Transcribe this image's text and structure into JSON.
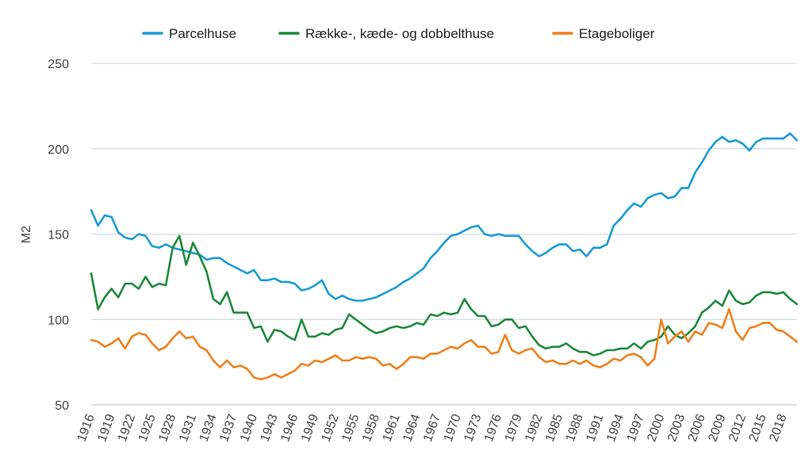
{
  "chart_data": {
    "type": "line",
    "ylabel": "M2",
    "ylim": [
      50,
      250
    ],
    "y_ticks": [
      "50",
      "100",
      "150",
      "200",
      "250"
    ],
    "x_tick_labels": [
      "1916",
      "1919",
      "1922",
      "1925",
      "1928",
      "1931",
      "1934",
      "1937",
      "1940",
      "1943",
      "1946",
      "1949",
      "1952",
      "1955",
      "1958",
      "1961",
      "1964",
      "1967",
      "1970",
      "1973",
      "1976",
      "1979",
      "1982",
      "1985",
      "1988",
      "1991",
      "1994",
      "1997",
      "2000",
      "2003",
      "2006",
      "2009",
      "2012",
      "2015",
      "2018"
    ],
    "x": [
      1916,
      1917,
      1918,
      1919,
      1920,
      1921,
      1922,
      1923,
      1924,
      1925,
      1926,
      1927,
      1928,
      1929,
      1930,
      1931,
      1932,
      1933,
      1934,
      1935,
      1936,
      1937,
      1938,
      1939,
      1940,
      1941,
      1942,
      1943,
      1944,
      1945,
      1946,
      1947,
      1948,
      1949,
      1950,
      1951,
      1952,
      1953,
      1954,
      1955,
      1956,
      1957,
      1958,
      1959,
      1960,
      1961,
      1962,
      1963,
      1964,
      1965,
      1966,
      1967,
      1968,
      1969,
      1970,
      1971,
      1972,
      1973,
      1974,
      1975,
      1976,
      1977,
      1978,
      1979,
      1980,
      1981,
      1982,
      1983,
      1984,
      1985,
      1986,
      1987,
      1988,
      1989,
      1990,
      1991,
      1992,
      1993,
      1994,
      1995,
      1996,
      1997,
      1998,
      1999,
      2000,
      2001,
      2002,
      2003,
      2004,
      2005,
      2006,
      2007,
      2008,
      2009,
      2010,
      2011,
      2012,
      2013,
      2014,
      2015,
      2016,
      2017,
      2018,
      2019,
      2020
    ],
    "grid": true,
    "legend_position": "top",
    "series": [
      {
        "name": "Parcelhuse",
        "color": "#1a9bd7",
        "values": [
          164,
          155,
          161,
          160,
          151,
          148,
          147,
          150,
          149,
          143,
          142,
          144,
          142,
          141,
          140,
          139,
          138,
          135,
          136,
          136,
          133,
          131,
          129,
          127,
          129,
          123,
          123,
          124,
          122,
          122,
          121,
          117,
          118,
          120,
          123,
          115,
          112,
          114,
          112,
          111,
          111,
          112,
          113,
          115,
          117,
          119,
          122,
          124,
          127,
          130,
          136,
          140,
          145,
          149,
          150,
          152,
          154,
          155,
          150,
          149,
          150,
          149,
          149,
          149,
          144,
          140,
          137,
          139,
          142,
          144,
          144,
          140,
          141,
          137,
          142,
          142,
          144,
          155,
          159,
          164,
          168,
          166,
          171,
          173,
          174,
          171,
          172,
          177,
          177,
          186,
          192,
          199,
          204,
          207,
          204,
          205,
          203,
          199,
          204,
          206,
          206,
          206,
          206,
          209,
          205
        ]
      },
      {
        "name": "Række-, kæde- og dobbelthuse",
        "color": "#1e8a3c",
        "values": [
          127,
          106,
          113,
          118,
          113,
          121,
          121,
          118,
          125,
          119,
          121,
          120,
          142,
          149,
          132,
          145,
          137,
          128,
          112,
          109,
          116,
          104,
          104,
          104,
          95,
          96,
          87,
          94,
          93,
          90,
          88,
          100,
          90,
          90,
          92,
          91,
          94,
          95,
          103,
          100,
          97,
          94,
          92,
          93,
          95,
          96,
          95,
          96,
          98,
          97,
          103,
          102,
          104,
          103,
          104,
          112,
          106,
          102,
          102,
          96,
          97,
          100,
          100,
          95,
          96,
          90,
          85,
          83,
          84,
          84,
          86,
          83,
          81,
          81,
          79,
          80,
          82,
          82,
          83,
          83,
          86,
          83,
          87,
          88,
          90,
          96,
          91,
          89,
          92,
          96,
          104,
          107,
          111,
          108,
          117,
          111,
          109,
          110,
          114,
          116,
          116,
          115,
          116,
          112,
          109
        ]
      },
      {
        "name": "Etageboliger",
        "color": "#f0801c",
        "values": [
          88,
          87,
          84,
          86,
          89,
          83,
          90,
          92,
          91,
          86,
          82,
          84,
          89,
          93,
          89,
          90,
          84,
          82,
          76,
          72,
          76,
          72,
          73,
          71,
          66,
          65,
          66,
          68,
          66,
          68,
          70,
          74,
          73,
          76,
          75,
          77,
          79,
          76,
          76,
          78,
          77,
          78,
          77,
          73,
          74,
          71,
          74,
          78,
          78,
          77,
          80,
          80,
          82,
          84,
          83,
          86,
          88,
          84,
          84,
          80,
          81,
          91,
          82,
          80,
          82,
          83,
          78,
          75,
          76,
          74,
          74,
          76,
          74,
          76,
          73,
          72,
          74,
          77,
          76,
          79,
          80,
          78,
          73,
          77,
          100,
          86,
          90,
          93,
          87,
          93,
          91,
          98,
          97,
          95,
          106,
          93,
          88,
          95,
          96,
          98,
          98,
          94,
          93,
          90,
          87
        ]
      }
    ]
  }
}
